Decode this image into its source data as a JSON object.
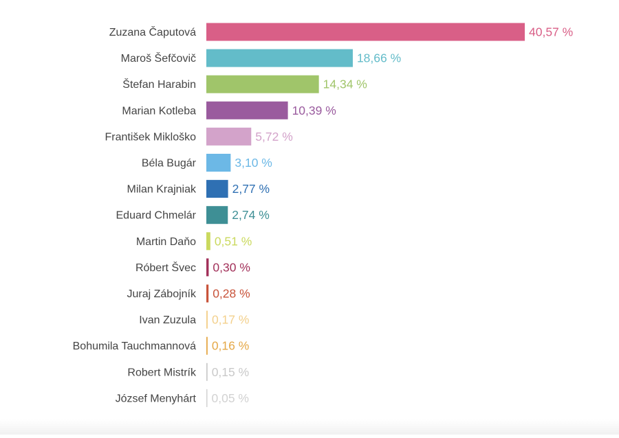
{
  "chart_data": {
    "type": "bar",
    "orientation": "horizontal",
    "title": "",
    "xlabel": "",
    "ylabel": "",
    "xlim": [
      0,
      40.57
    ],
    "grid": false,
    "legend": "none",
    "categories": [
      "Zuzana Čaputová",
      "Maroš Šefčovič",
      "Štefan Harabin",
      "Marian Kotleba",
      "František Mikloško",
      "Béla Bugár",
      "Milan Krajniak",
      "Eduard Chmelár",
      "Martin Daňo",
      "Róbert Švec",
      "Juraj Zábojník",
      "Ivan Zuzula",
      "Bohumila Tauchmannová",
      "Robert Mistrík",
      "József Menyhárt"
    ],
    "values": [
      40.57,
      18.66,
      14.34,
      10.39,
      5.72,
      3.1,
      2.77,
      2.74,
      0.51,
      0.3,
      0.28,
      0.17,
      0.16,
      0.15,
      0.05
    ],
    "value_labels": [
      "40,57 %",
      "18,66 %",
      "14,34 %",
      "10,39 %",
      "5,72 %",
      "3,10 %",
      "2,77 %",
      "2,74 %",
      "0,51 %",
      "0,30 %",
      "0,28 %",
      "0,17 %",
      "0,16 %",
      "0,15 %",
      "0,05 %"
    ],
    "colors": [
      "#d95f87",
      "#63bcc9",
      "#a0c56a",
      "#9a5b9e",
      "#d3a3ca",
      "#6cb8e6",
      "#2f70b3",
      "#3e8f95",
      "#cad95e",
      "#a2315a",
      "#c8533a",
      "#f3d08c",
      "#e5a847",
      "#c9c9c9",
      "#d2d2d2"
    ]
  }
}
